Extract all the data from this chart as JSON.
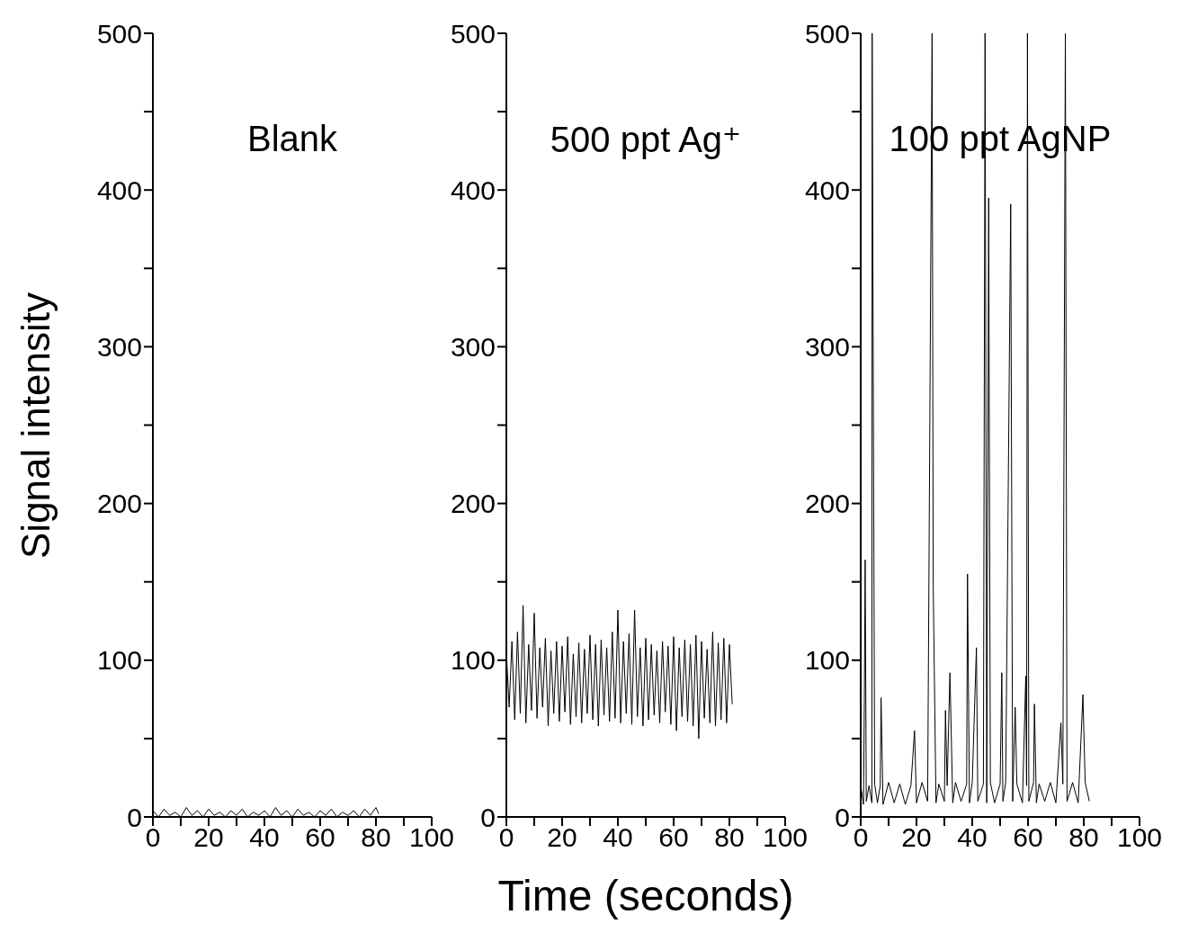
{
  "chart_data": [
    {
      "type": "line",
      "ylabel": "Signal intensity",
      "annotations": [
        "Blank"
      ],
      "color": "#000000",
      "xlim": [
        0,
        100
      ],
      "ylim": [
        0,
        500
      ],
      "xticks": [
        0,
        {
          "value": 10,
          "label": null
        },
        20,
        {
          "value": 30,
          "label": null
        },
        40,
        {
          "value": 50,
          "label": null
        },
        60,
        {
          "value": 70,
          "label": null
        },
        80,
        {
          "value": 90,
          "label": null
        },
        100
      ],
      "yticks": [
        0,
        {
          "value": 50,
          "label": null
        },
        100,
        {
          "value": 150,
          "label": null
        },
        200,
        {
          "value": 250,
          "label": null
        },
        300,
        {
          "value": 350,
          "label": null
        },
        400,
        {
          "value": 450,
          "label": null
        },
        500
      ],
      "grid": false,
      "legend": false,
      "x": [
        0,
        2,
        4,
        6,
        8,
        10,
        12,
        14,
        16,
        18,
        20,
        22,
        24,
        26,
        28,
        30,
        32,
        34,
        36,
        38,
        40,
        42,
        44,
        46,
        48,
        50,
        52,
        54,
        56,
        58,
        60,
        62,
        64,
        66,
        68,
        70,
        72,
        74,
        76,
        78,
        80,
        81
      ],
      "values": [
        4,
        0,
        5,
        1,
        3,
        0,
        6,
        1,
        4,
        0,
        5,
        1,
        3,
        0,
        4,
        1,
        5,
        0,
        3,
        1,
        4,
        0,
        6,
        1,
        4,
        0,
        5,
        1,
        3,
        0,
        4,
        1,
        5,
        0,
        3,
        1,
        4,
        0,
        5,
        1,
        6,
        2
      ]
    },
    {
      "type": "line",
      "xlabel": "Time (seconds)",
      "annotations": [
        "500 ppt Ag⁺"
      ],
      "color": "#000000",
      "xlim": [
        0,
        100
      ],
      "ylim": [
        0,
        500
      ],
      "xticks": [
        0,
        {
          "value": 10,
          "label": null
        },
        20,
        {
          "value": 30,
          "label": null
        },
        40,
        {
          "value": 50,
          "label": null
        },
        60,
        {
          "value": 70,
          "label": null
        },
        80,
        {
          "value": 90,
          "label": null
        },
        100
      ],
      "yticks": [
        0,
        {
          "value": 50,
          "label": null
        },
        100,
        {
          "value": 150,
          "label": null
        },
        200,
        {
          "value": 250,
          "label": null
        },
        300,
        {
          "value": 350,
          "label": null
        },
        400,
        {
          "value": 450,
          "label": null
        },
        500
      ],
      "grid": false,
      "legend": false,
      "x": [
        0,
        1,
        2,
        3,
        4,
        5,
        6,
        7,
        8,
        9,
        10,
        11,
        12,
        13,
        14,
        15,
        16,
        17,
        18,
        19,
        20,
        21,
        22,
        23,
        24,
        25,
        26,
        27,
        28,
        29,
        30,
        31,
        32,
        33,
        34,
        35,
        36,
        37,
        38,
        39,
        40,
        41,
        42,
        43,
        44,
        45,
        46,
        47,
        48,
        49,
        50,
        51,
        52,
        53,
        54,
        55,
        56,
        57,
        58,
        59,
        60,
        61,
        62,
        63,
        64,
        65,
        66,
        67,
        68,
        69,
        70,
        71,
        72,
        73,
        74,
        75,
        76,
        77,
        78,
        79,
        80,
        81
      ],
      "values": [
        105,
        70,
        112,
        62,
        118,
        66,
        135,
        60,
        110,
        68,
        130,
        63,
        108,
        70,
        114,
        58,
        106,
        66,
        112,
        61,
        109,
        67,
        115,
        59,
        104,
        64,
        111,
        60,
        107,
        66,
        116,
        62,
        110,
        58,
        113,
        65,
        108,
        61,
        118,
        63,
        132,
        60,
        112,
        66,
        117,
        59,
        132,
        64,
        108,
        58,
        114,
        62,
        110,
        65,
        106,
        60,
        112,
        67,
        109,
        59,
        115,
        55,
        108,
        64,
        113,
        61,
        110,
        58,
        116,
        50,
        112,
        63,
        107,
        60,
        118,
        58,
        111,
        62,
        114,
        60,
        110,
        72
      ]
    },
    {
      "type": "line",
      "annotations": [
        "100 ppt AgNP"
      ],
      "color": "#000000",
      "xlim": [
        0,
        100
      ],
      "ylim": [
        0,
        500
      ],
      "xticks": [
        0,
        {
          "value": 10,
          "label": null
        },
        20,
        {
          "value": 30,
          "label": null
        },
        40,
        {
          "value": 50,
          "label": null
        },
        60,
        {
          "value": 70,
          "label": null
        },
        80,
        {
          "value": 90,
          "label": null
        },
        100
      ],
      "yticks": [
        0,
        {
          "value": 50,
          "label": null
        },
        100,
        {
          "value": 150,
          "label": null
        },
        200,
        {
          "value": 250,
          "label": null
        },
        300,
        {
          "value": 350,
          "label": null
        },
        400,
        {
          "value": 450,
          "label": null
        },
        500
      ],
      "grid": false,
      "legend": false,
      "x": [
        0,
        1,
        1.3,
        1.6,
        2,
        3,
        4,
        4.1,
        5,
        6,
        7,
        7.3,
        8,
        10,
        12,
        14,
        16,
        18,
        19.3,
        20,
        22,
        24,
        25.6,
        26,
        27,
        28,
        30,
        30.4,
        31,
        32,
        33,
        34,
        36,
        38,
        38.3,
        39,
        40,
        41.5,
        42,
        44,
        44.6,
        45.2,
        45.9,
        46.5,
        48,
        50,
        50.6,
        51,
        52,
        53.8,
        54.5,
        55.4,
        56,
        58,
        59.2,
        59.5,
        59.8,
        60.3,
        62,
        62.3,
        63,
        64,
        66,
        68,
        70,
        71.8,
        72.5,
        73.4,
        74,
        76,
        78,
        79.7,
        80.5,
        82
      ],
      "values": [
        20,
        8,
        73,
        164,
        10,
        20,
        9,
        500,
        21,
        9,
        20,
        76,
        8,
        22,
        9,
        21,
        8,
        20,
        55,
        9,
        22,
        10,
        500,
        148,
        9,
        21,
        10,
        68,
        20,
        92,
        9,
        22,
        10,
        21,
        155,
        9,
        22,
        108,
        10,
        21,
        500,
        9,
        395,
        22,
        9,
        21,
        92,
        10,
        22,
        391,
        10,
        70,
        21,
        9,
        90,
        20,
        500,
        10,
        22,
        72,
        9,
        21,
        10,
        22,
        9,
        60,
        21,
        500,
        10,
        22,
        9,
        78,
        22,
        10
      ]
    }
  ]
}
